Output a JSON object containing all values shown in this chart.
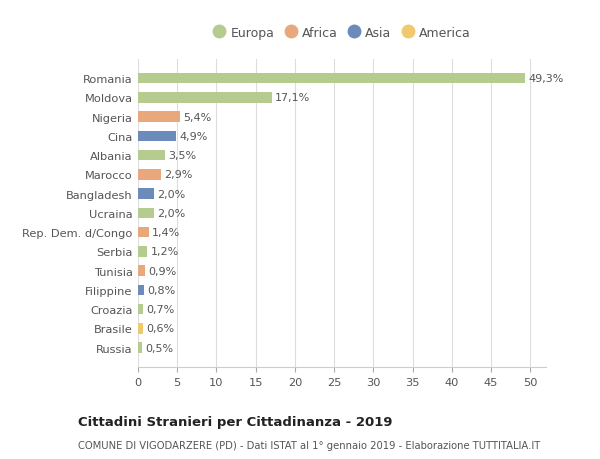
{
  "countries": [
    "Romania",
    "Moldova",
    "Nigeria",
    "Cina",
    "Albania",
    "Marocco",
    "Bangladesh",
    "Ucraina",
    "Rep. Dem. d/Congo",
    "Serbia",
    "Tunisia",
    "Filippine",
    "Croazia",
    "Brasile",
    "Russia"
  ],
  "values": [
    49.3,
    17.1,
    5.4,
    4.9,
    3.5,
    2.9,
    2.0,
    2.0,
    1.4,
    1.2,
    0.9,
    0.8,
    0.7,
    0.6,
    0.5
  ],
  "labels": [
    "49,3%",
    "17,1%",
    "5,4%",
    "4,9%",
    "3,5%",
    "2,9%",
    "2,0%",
    "2,0%",
    "1,4%",
    "1,2%",
    "0,9%",
    "0,8%",
    "0,7%",
    "0,6%",
    "0,5%"
  ],
  "continents": [
    "Europa",
    "Europa",
    "Africa",
    "Asia",
    "Europa",
    "Africa",
    "Asia",
    "Europa",
    "Africa",
    "Europa",
    "Africa",
    "Asia",
    "Europa",
    "America",
    "Europa"
  ],
  "continent_colors": {
    "Europa": "#b5cc8e",
    "Africa": "#e8a87c",
    "Asia": "#6b8cba",
    "America": "#f0c96e"
  },
  "legend_order": [
    "Europa",
    "Africa",
    "Asia",
    "America"
  ],
  "xlim": [
    0,
    52
  ],
  "xticks": [
    0,
    5,
    10,
    15,
    20,
    25,
    30,
    35,
    40,
    45,
    50
  ],
  "title": "Cittadini Stranieri per Cittadinanza - 2019",
  "subtitle": "COMUNE DI VIGODARZERE (PD) - Dati ISTAT al 1° gennaio 2019 - Elaborazione TUTTITALIA.IT",
  "background_color": "#ffffff",
  "grid_color": "#dddddd"
}
